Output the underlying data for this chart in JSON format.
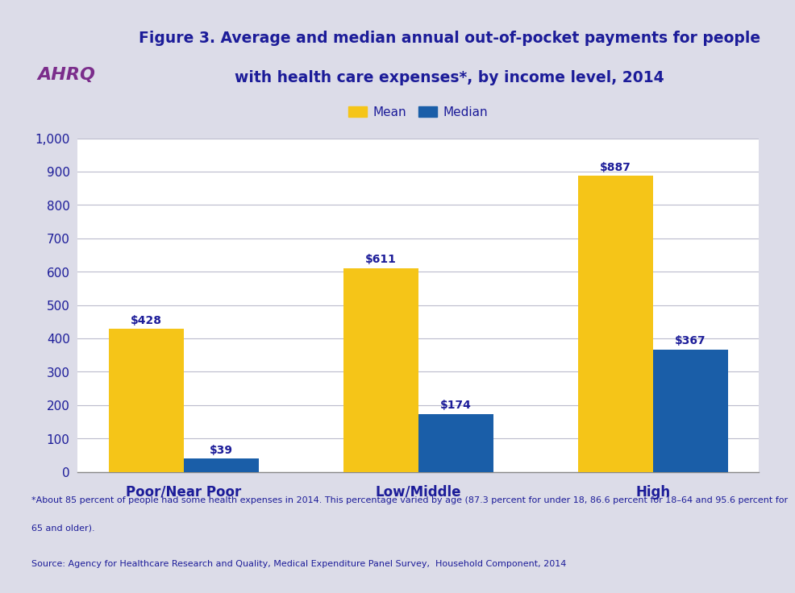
{
  "title_line1": "Figure 3. Average and median annual out-of-pocket payments for people",
  "title_line2": "with health care expenses*, by income level, 2014",
  "categories": [
    "Poor/Near Poor",
    "Low/Middle",
    "High"
  ],
  "mean_values": [
    428,
    611,
    887
  ],
  "median_values": [
    39,
    174,
    367
  ],
  "mean_color": "#F5C518",
  "median_color": "#1A5EA8",
  "bar_width": 0.32,
  "ylim": [
    0,
    1000
  ],
  "yticks": [
    0,
    100,
    200,
    300,
    400,
    500,
    600,
    700,
    800,
    900,
    1000
  ],
  "legend_labels": [
    "Mean",
    "Median"
  ],
  "title_color": "#1C1C99",
  "tick_label_color": "#1C1C99",
  "annotation_color": "#1C1C99",
  "background_color": "#DCDCE8",
  "plot_bg_color": "#FFFFFF",
  "footer_line1": "*About 85 percent of people had some health expenses in 2014. This percentage varied by age (87.3 percent for under 18, 86.6 percent for 18–64 and 95.6 percent for",
  "footer_line1b": "65 and older).",
  "footer_line2": "Source: Agency for Healthcare Research and Quality, Medical Expenditure Panel Survey,  Household Component, 2014",
  "footer_color": "#1C1C99",
  "separator_color": "#9999AA",
  "grid_color": "#BBBBCC"
}
